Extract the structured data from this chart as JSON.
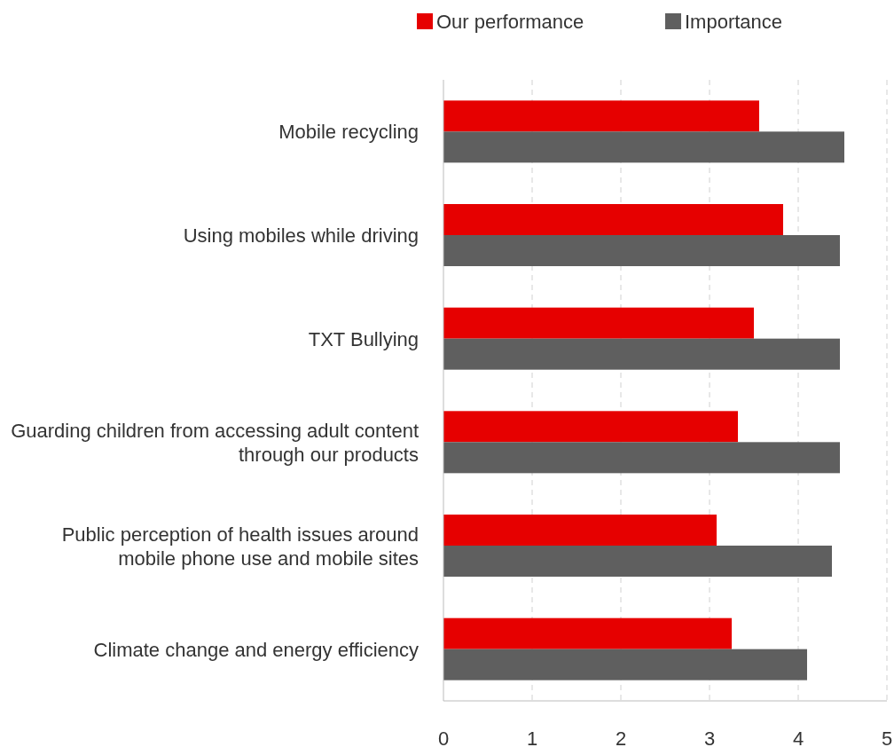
{
  "chart_data": {
    "type": "bar",
    "orientation": "horizontal",
    "categories": [
      "Mobile recycling",
      "Using mobiles while driving",
      "TXT Bullying",
      "Guarding children from accessing adult content through our products",
      "Public perception of health issues around mobile phone use and mobile sites",
      "Climate change and energy efficiency"
    ],
    "series": [
      {
        "name": "Our performance",
        "color": "#e60000",
        "values": [
          3.56,
          3.83,
          3.5,
          3.32,
          3.08,
          3.25
        ]
      },
      {
        "name": "Importance",
        "color": "#5f5f5f",
        "values": [
          4.52,
          4.47,
          4.47,
          4.47,
          4.38,
          4.1
        ]
      }
    ],
    "xlim": [
      0,
      5
    ],
    "xticks": [
      0,
      1,
      2,
      3,
      4,
      5
    ],
    "grid": "x",
    "legend": "top"
  }
}
